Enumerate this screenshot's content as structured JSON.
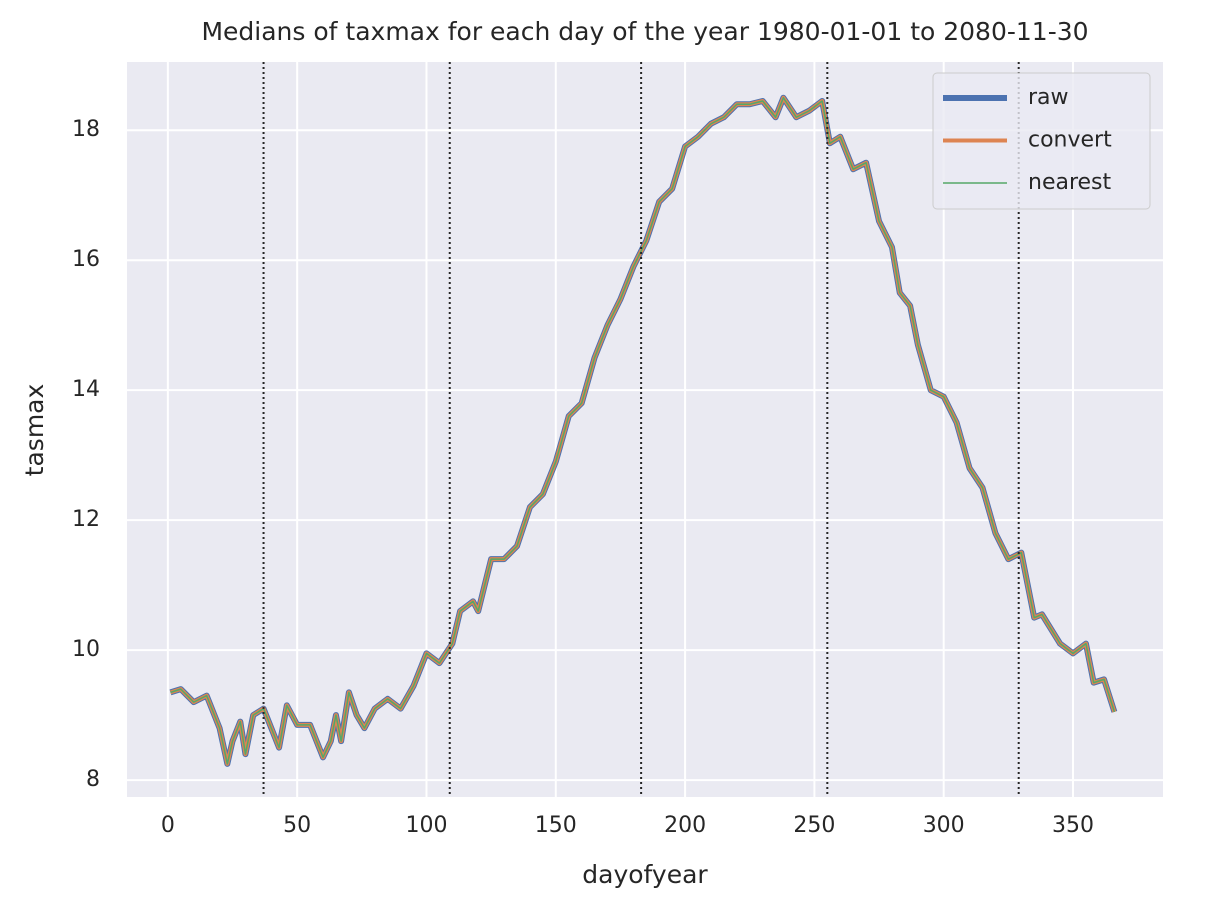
{
  "chart_data": {
    "type": "line",
    "title": "Medians of taxmax for each day of the year 1980-01-01 to 2080-11-30",
    "x_label": "dayofyear",
    "y_label": "tasmax",
    "x": [
      1,
      5,
      10,
      15,
      20,
      23,
      25,
      28,
      30,
      33,
      37,
      40,
      43,
      46,
      50,
      55,
      60,
      63,
      65,
      67,
      70,
      73,
      76,
      80,
      85,
      90,
      95,
      100,
      105,
      110,
      113,
      118,
      120,
      125,
      130,
      135,
      140,
      145,
      150,
      155,
      160,
      165,
      170,
      175,
      180,
      185,
      190,
      195,
      200,
      205,
      210,
      215,
      220,
      225,
      230,
      235,
      238,
      243,
      248,
      253,
      256,
      260,
      265,
      270,
      275,
      280,
      283,
      287,
      290,
      295,
      300,
      305,
      310,
      315,
      320,
      325,
      330,
      335,
      338,
      345,
      350,
      355,
      358,
      362,
      366
    ],
    "series": [
      {
        "name": "raw",
        "color": "#4c72b0",
        "width": 6,
        "values": [
          9.35,
          9.4,
          9.2,
          9.3,
          8.8,
          8.25,
          8.6,
          8.9,
          8.4,
          9.0,
          9.1,
          8.8,
          8.5,
          9.15,
          8.85,
          8.85,
          8.35,
          8.6,
          9.0,
          8.6,
          9.35,
          9.0,
          8.8,
          9.1,
          9.25,
          9.1,
          9.45,
          9.95,
          9.8,
          10.1,
          10.6,
          10.75,
          10.6,
          11.4,
          11.4,
          11.6,
          12.2,
          12.4,
          12.9,
          13.6,
          13.8,
          14.5,
          15.0,
          15.4,
          15.9,
          16.3,
          16.9,
          17.1,
          17.75,
          17.9,
          18.1,
          18.2,
          18.4,
          18.4,
          18.45,
          18.2,
          18.5,
          18.2,
          18.3,
          18.45,
          17.8,
          17.9,
          17.4,
          17.5,
          16.6,
          16.2,
          15.5,
          15.3,
          14.7,
          14.0,
          13.9,
          13.5,
          12.8,
          12.5,
          11.8,
          11.4,
          11.5,
          10.5,
          10.55,
          10.1,
          9.95,
          10.1,
          9.5,
          9.55,
          9.05
        ]
      },
      {
        "name": "convert",
        "color": "#dd8452",
        "width": 4,
        "values": [
          9.35,
          9.4,
          9.2,
          9.3,
          8.8,
          8.25,
          8.6,
          8.9,
          8.4,
          9.0,
          9.1,
          8.8,
          8.5,
          9.15,
          8.85,
          8.85,
          8.35,
          8.6,
          9.0,
          8.6,
          9.35,
          9.0,
          8.8,
          9.1,
          9.25,
          9.1,
          9.45,
          9.95,
          9.8,
          10.1,
          10.6,
          10.75,
          10.6,
          11.4,
          11.4,
          11.6,
          12.2,
          12.4,
          12.9,
          13.6,
          13.8,
          14.5,
          15.0,
          15.4,
          15.9,
          16.3,
          16.9,
          17.1,
          17.75,
          17.9,
          18.1,
          18.2,
          18.4,
          18.4,
          18.45,
          18.2,
          18.5,
          18.2,
          18.3,
          18.45,
          17.8,
          17.9,
          17.4,
          17.5,
          16.6,
          16.2,
          15.5,
          15.3,
          14.7,
          14.0,
          13.9,
          13.5,
          12.8,
          12.5,
          11.8,
          11.4,
          11.5,
          10.5,
          10.55,
          10.1,
          9.95,
          10.1,
          9.5,
          9.55,
          9.05
        ]
      },
      {
        "name": "nearest",
        "color": "#55a868",
        "width": 1.5,
        "values": [
          9.35,
          9.4,
          9.2,
          9.3,
          8.8,
          8.25,
          8.6,
          8.9,
          8.4,
          9.0,
          9.1,
          8.8,
          8.5,
          9.15,
          8.85,
          8.85,
          8.35,
          8.6,
          9.0,
          8.6,
          9.35,
          9.0,
          8.8,
          9.1,
          9.25,
          9.1,
          9.45,
          9.95,
          9.8,
          10.1,
          10.6,
          10.75,
          10.6,
          11.4,
          11.4,
          11.6,
          12.2,
          12.4,
          12.9,
          13.6,
          13.8,
          14.5,
          15.0,
          15.4,
          15.9,
          16.3,
          16.9,
          17.1,
          17.75,
          17.9,
          18.1,
          18.2,
          18.4,
          18.4,
          18.45,
          18.2,
          18.5,
          18.2,
          18.3,
          18.45,
          17.8,
          17.9,
          17.4,
          17.5,
          16.6,
          16.2,
          15.5,
          15.3,
          14.7,
          14.0,
          13.9,
          13.5,
          12.8,
          12.5,
          11.8,
          11.4,
          11.5,
          10.5,
          10.55,
          10.1,
          9.95,
          10.1,
          9.5,
          9.55,
          9.05
        ]
      }
    ],
    "vlines": [
      37,
      109,
      183,
      255,
      329
    ],
    "xlim": [
      -15.8,
      384.8
    ],
    "xticks": [
      0,
      50,
      100,
      150,
      200,
      250,
      300,
      350
    ],
    "ylim": [
      7.74,
      19.05
    ],
    "yticks": [
      8,
      10,
      12,
      14,
      16,
      18
    ],
    "grid": true,
    "legend": "upper right"
  }
}
